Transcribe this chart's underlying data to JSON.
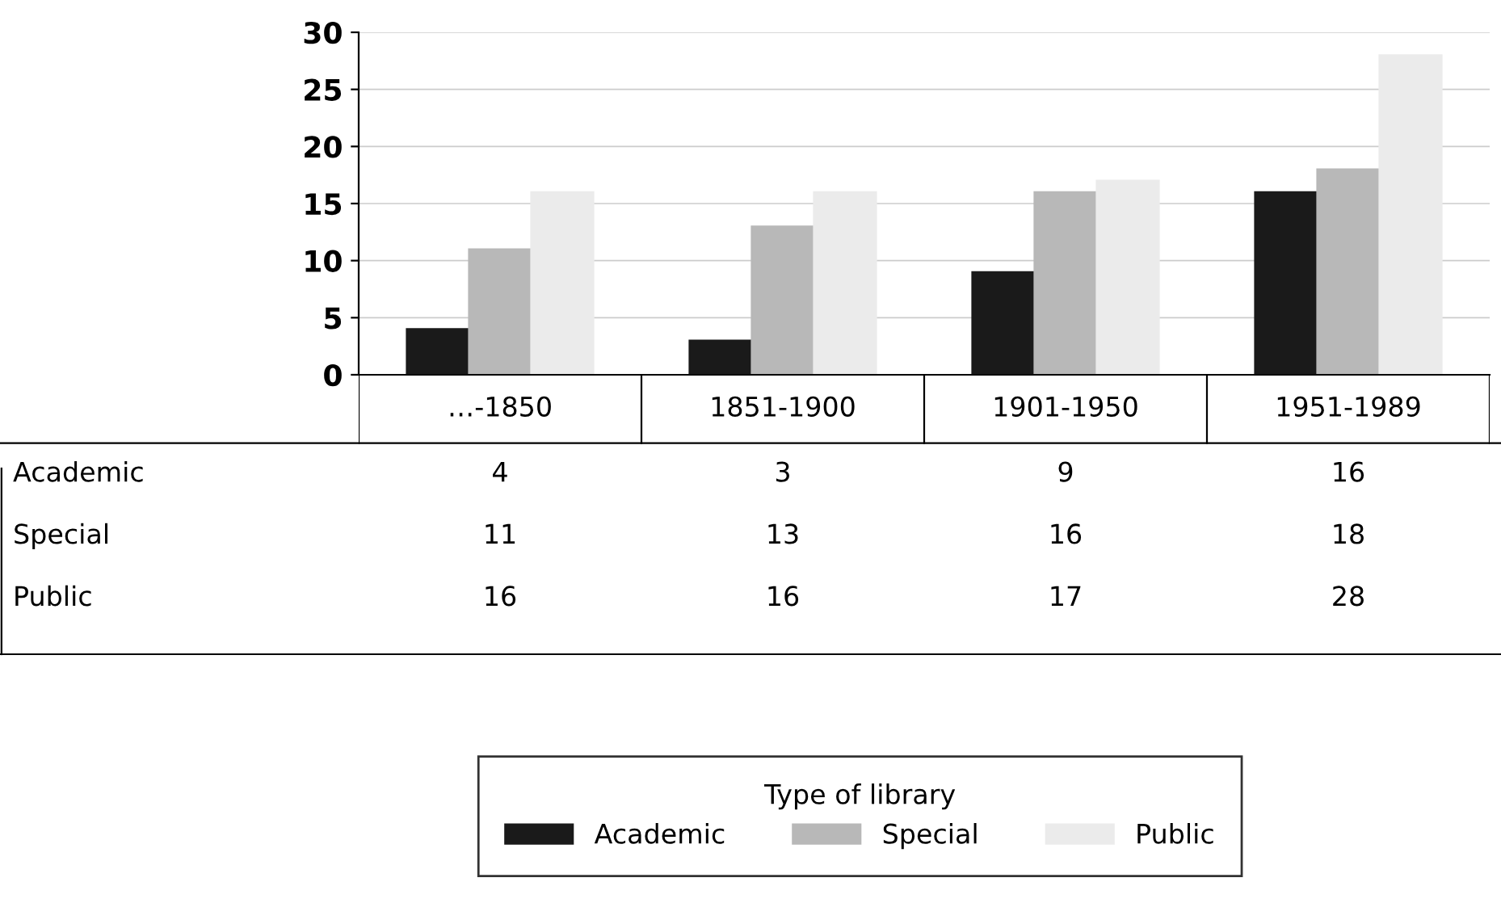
{
  "chart_data": {
    "type": "bar",
    "categories": [
      "…-1850",
      "1851-1900",
      "1901-1950",
      "1951-1989"
    ],
    "series": [
      {
        "name": "Academic",
        "color": "#1a1a1a",
        "values": [
          4,
          3,
          9,
          16
        ]
      },
      {
        "name": "Special",
        "color": "#b8b8b8",
        "values": [
          11,
          13,
          16,
          18
        ]
      },
      {
        "name": "Public",
        "color": "#ebebeb",
        "values": [
          16,
          16,
          17,
          28
        ]
      }
    ],
    "ylim": [
      0,
      30
    ],
    "yticks": [
      0,
      5,
      10,
      15,
      20,
      25,
      30
    ],
    "grid": "y",
    "legend": "bottom",
    "legend_title": "Type of library",
    "data_labels": true
  }
}
